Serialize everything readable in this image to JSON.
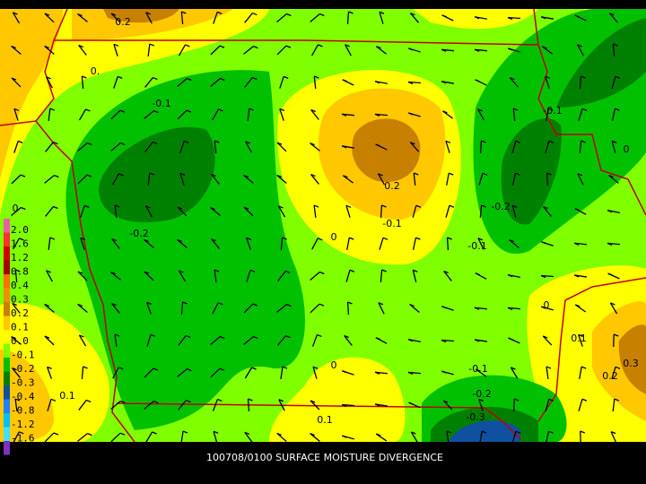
{
  "caption": "100708/0100 SURFACE MOISTURE DIVERGENCE",
  "colorbar": {
    "labels": [
      "2.0",
      "1.6",
      "1.2",
      "0.8",
      "0.4",
      "0.3",
      "0.2",
      "0.1",
      "0.0",
      "-0.1",
      "-0.2",
      "-0.3",
      "-0.4",
      "-0.8",
      "-1.2",
      "-1.6",
      "-2.0"
    ],
    "colors": [
      "#e8609f",
      "#ff3030",
      "#d00000",
      "#a00000",
      "#ff7000",
      "#f09000",
      "#c88000",
      "#ffc800",
      "#ffff00",
      "#80ff00",
      "#00c000",
      "#008000",
      "#1050a0",
      "#2080ff",
      "#00c0ff",
      "#40e0ff",
      "#8030c0"
    ]
  },
  "contour_labels": [
    "0.2",
    "0.",
    "-0.1",
    "0",
    "-0.2",
    "0.2",
    "-0.1",
    "0",
    "-0.2",
    "-0.1",
    "-0.1",
    "0",
    "0",
    "0.1",
    "0.3",
    "0.2",
    "0",
    "-0.1",
    "-0.2",
    "-0.3",
    "0.1",
    "0.1"
  ]
}
